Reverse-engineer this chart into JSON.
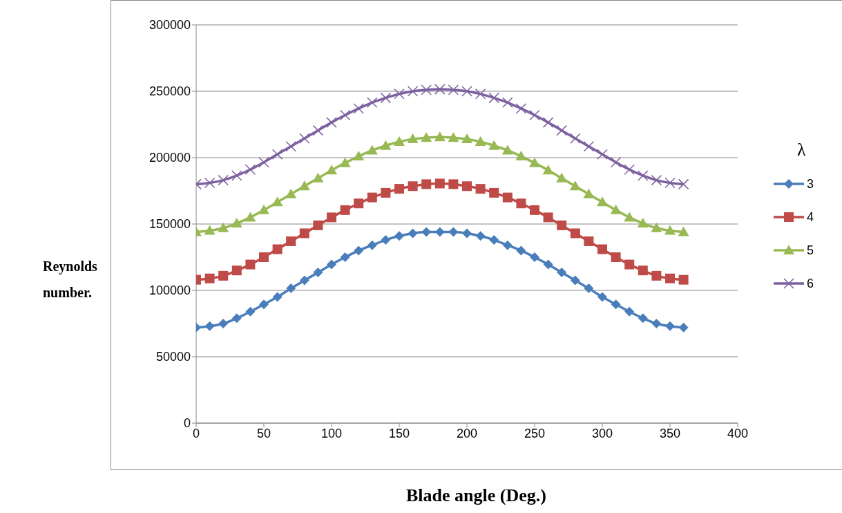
{
  "chart_data": {
    "type": "line",
    "xlabel": "Blade angle (Deg.)",
    "ylabel": "Reynolds number.",
    "legend_title": "λ",
    "x": [
      0,
      10,
      20,
      30,
      40,
      50,
      60,
      70,
      80,
      90,
      100,
      110,
      120,
      130,
      140,
      150,
      160,
      170,
      180,
      190,
      200,
      210,
      220,
      230,
      240,
      250,
      260,
      270,
      280,
      290,
      300,
      310,
      320,
      330,
      340,
      350,
      360
    ],
    "series": [
      {
        "name": "3",
        "color": "#4a7ebb",
        "marker": "diamond",
        "values": [
          72000,
          73000,
          75000,
          79000,
          84000,
          89500,
          95000,
          101500,
          107500,
          113500,
          119500,
          125000,
          130000,
          134000,
          138000,
          141000,
          143000,
          144000,
          144000,
          144000,
          143000,
          141000,
          138000,
          134000,
          130000,
          125000,
          119500,
          113500,
          107500,
          101500,
          95000,
          89500,
          84000,
          79000,
          75000,
          73000,
          72000
        ]
      },
      {
        "name": "4",
        "color": "#be4b48",
        "marker": "square",
        "values": [
          108000,
          109000,
          111000,
          115000,
          119500,
          125000,
          131000,
          137000,
          143000,
          149000,
          155000,
          160500,
          165500,
          170000,
          173500,
          176500,
          178500,
          180000,
          180500,
          180000,
          178500,
          176500,
          173500,
          170000,
          165500,
          160500,
          155000,
          149000,
          143000,
          137000,
          131000,
          125000,
          119500,
          115000,
          111000,
          109000,
          108000
        ]
      },
      {
        "name": "5",
        "color": "#98b954",
        "marker": "triangle",
        "values": [
          144000,
          145000,
          147000,
          150500,
          155000,
          160500,
          166500,
          172500,
          178500,
          184500,
          190500,
          196000,
          201000,
          205500,
          209000,
          212000,
          214000,
          215000,
          215500,
          215000,
          214000,
          212000,
          209000,
          205500,
          201000,
          196000,
          190500,
          184500,
          178500,
          172500,
          166500,
          160500,
          155000,
          150500,
          147000,
          145000,
          144000
        ]
      },
      {
        "name": "6",
        "color": "#7d60a0",
        "marker": "cross",
        "values": [
          180000,
          181000,
          183000,
          186500,
          191000,
          196500,
          202500,
          208500,
          214500,
          220500,
          226500,
          232000,
          237000,
          241500,
          245000,
          248000,
          250000,
          251000,
          251500,
          251000,
          250000,
          248000,
          245000,
          241500,
          237000,
          232000,
          226500,
          220500,
          214500,
          208500,
          202500,
          196500,
          191000,
          186500,
          183000,
          181000,
          180000
        ]
      }
    ],
    "xlim": [
      0,
      400
    ],
    "xticks": [
      0,
      50,
      100,
      150,
      200,
      250,
      300,
      350,
      400
    ],
    "ylim": [
      0,
      300000
    ],
    "yticks": [
      0,
      50000,
      100000,
      150000,
      200000,
      250000,
      300000
    ],
    "grid": "y",
    "legend": "right",
    "line_style": "solid"
  }
}
